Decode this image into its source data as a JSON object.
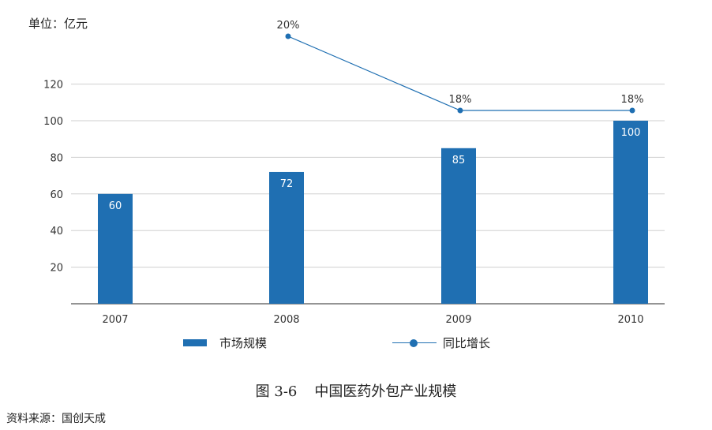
{
  "unit_label": "单位：亿元",
  "caption": {
    "figure_no": "图 3-6",
    "title": "中国医药外包产业规模"
  },
  "source": "资料来源：国创天成",
  "colors": {
    "bar": "#1f6fb2",
    "line": "#1f6fb2",
    "grid": "#cfcfcf",
    "axis": "#555555"
  },
  "chart_data": {
    "type": "bar",
    "categories": [
      "2007",
      "2008",
      "2009",
      "2010"
    ],
    "ylim": [
      0,
      120
    ],
    "yticks": [
      20,
      40,
      60,
      80,
      100,
      120
    ],
    "grid": true,
    "legend_position": "bottom",
    "series": [
      {
        "name": "市场规模",
        "type": "bar",
        "values": [
          60,
          72,
          85,
          100
        ],
        "labels": [
          "60",
          "72",
          "85",
          "100"
        ]
      },
      {
        "name": "同比增长",
        "type": "line",
        "values": [
          null,
          20,
          18,
          18
        ],
        "labels": [
          "",
          "20%",
          "18%",
          "18%"
        ]
      }
    ]
  }
}
